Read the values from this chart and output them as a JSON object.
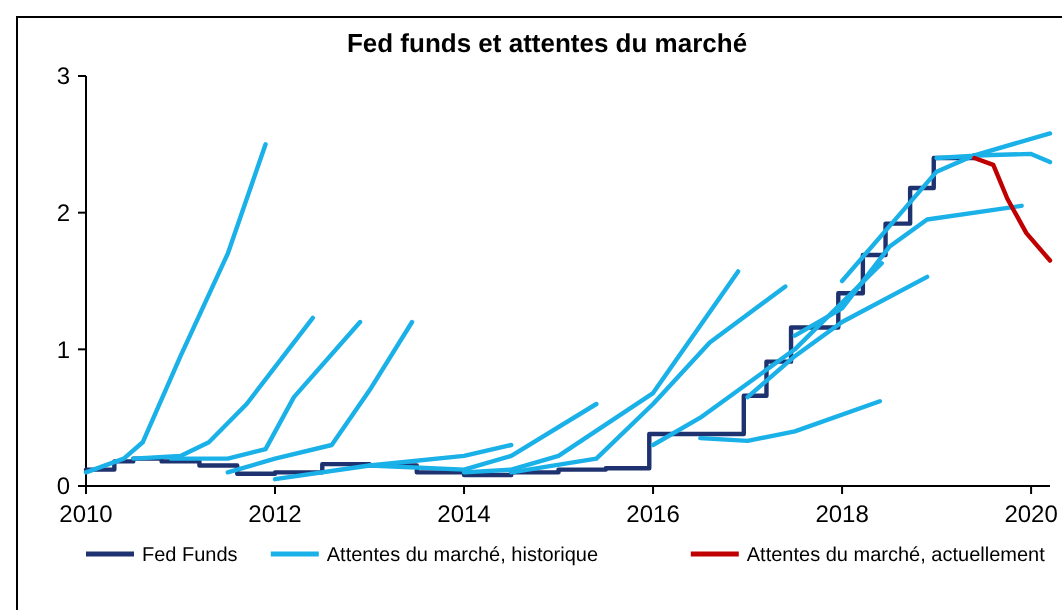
{
  "chart_data": {
    "type": "line",
    "title": "Fed funds et attentes du marché",
    "xlim": [
      2010,
      2020.2
    ],
    "xticks": [
      2010,
      2012,
      2014,
      2016,
      2018,
      2020
    ],
    "ylim": [
      0,
      3
    ],
    "yticks": [
      0,
      1,
      2,
      3
    ],
    "grid": false,
    "legend": "bottom",
    "line_style": "solid",
    "marker": "none",
    "series": [
      {
        "name": "Fed Funds",
        "type": "step",
        "color": "#1f3270",
        "x": [
          2010,
          2010.3,
          2010.5,
          2010.8,
          2011.2,
          2011.6,
          2012,
          2012.5,
          2013,
          2013.5,
          2014,
          2014.5,
          2015,
          2015.5,
          2015.96,
          2016.96,
          2017.2,
          2017.46,
          2017.96,
          2018.22,
          2018.46,
          2018.72,
          2018.97,
          2019.4
        ],
        "values": [
          0.12,
          0.18,
          0.2,
          0.18,
          0.15,
          0.09,
          0.1,
          0.16,
          0.15,
          0.1,
          0.08,
          0.1,
          0.12,
          0.13,
          0.38,
          0.66,
          0.91,
          1.16,
          1.41,
          1.69,
          1.92,
          2.18,
          2.4,
          2.42
        ]
      },
      {
        "name": "Attentes du marché, historique",
        "color": "#1ab0e8",
        "x": [
          2010,
          2010.4,
          2010.6,
          2011,
          2011.5,
          2011.9
        ],
        "values": [
          0.1,
          0.2,
          0.32,
          0.95,
          1.7,
          2.5
        ]
      },
      {
        "color": "#1ab0e8",
        "x": [
          2010.5,
          2011,
          2011.3,
          2011.7,
          2012.4
        ],
        "values": [
          0.2,
          0.22,
          0.32,
          0.6,
          1.23
        ]
      },
      {
        "color": "#1ab0e8",
        "x": [
          2010.9,
          2011.5,
          2011.9,
          2012.2,
          2012.9
        ],
        "values": [
          0.2,
          0.2,
          0.27,
          0.65,
          1.2
        ]
      },
      {
        "color": "#1ab0e8",
        "x": [
          2011.5,
          2012,
          2012.6,
          2013,
          2013.45
        ],
        "values": [
          0.1,
          0.2,
          0.3,
          0.7,
          1.2
        ]
      },
      {
        "color": "#1ab0e8",
        "x": [
          2012,
          2013,
          2014,
          2014.5
        ],
        "values": [
          0.05,
          0.15,
          0.22,
          0.3
        ]
      },
      {
        "color": "#1ab0e8",
        "x": [
          2013,
          2014,
          2014.5,
          2015.4
        ],
        "values": [
          0.15,
          0.12,
          0.22,
          0.6
        ]
      },
      {
        "color": "#1ab0e8",
        "x": [
          2014,
          2014.5,
          2015,
          2016,
          2016.9
        ],
        "values": [
          0.1,
          0.12,
          0.22,
          0.68,
          1.57
        ]
      },
      {
        "color": "#1ab0e8",
        "x": [
          2014.5,
          2015.4,
          2016,
          2016.6,
          2017.4
        ],
        "values": [
          0.1,
          0.2,
          0.6,
          1.05,
          1.46
        ]
      },
      {
        "color": "#1ab0e8",
        "x": [
          2016.5,
          2017,
          2017.5,
          2018.4
        ],
        "values": [
          0.35,
          0.33,
          0.4,
          0.62
        ]
      },
      {
        "color": "#1ab0e8",
        "x": [
          2016,
          2016.5,
          2017.5,
          2018.42
        ],
        "values": [
          0.3,
          0.5,
          1.0,
          1.63
        ]
      },
      {
        "color": "#1ab0e8",
        "x": [
          2017,
          2017.5,
          2018,
          2018.9
        ],
        "values": [
          0.65,
          0.95,
          1.2,
          1.53
        ]
      },
      {
        "color": "#1ab0e8",
        "x": [
          2017.5,
          2018,
          2018.5,
          2018.9,
          2019.9
        ],
        "values": [
          1.1,
          1.3,
          1.75,
          1.95,
          2.05
        ]
      },
      {
        "color": "#1ab0e8",
        "x": [
          2018,
          2018.5,
          2019,
          2019.4,
          2020.2
        ],
        "values": [
          1.5,
          1.9,
          2.3,
          2.42,
          2.58
        ]
      },
      {
        "color": "#1ab0e8",
        "x": [
          2019,
          2019.5,
          2020,
          2020.2
        ],
        "values": [
          2.4,
          2.42,
          2.43,
          2.37
        ]
      },
      {
        "name": "Attentes du marché, actuellement",
        "color": "#c00000",
        "x": [
          2019.4,
          2019.6,
          2019.75,
          2019.95,
          2020.2
        ],
        "values": [
          2.4,
          2.35,
          2.1,
          1.85,
          1.65
        ]
      }
    ]
  }
}
